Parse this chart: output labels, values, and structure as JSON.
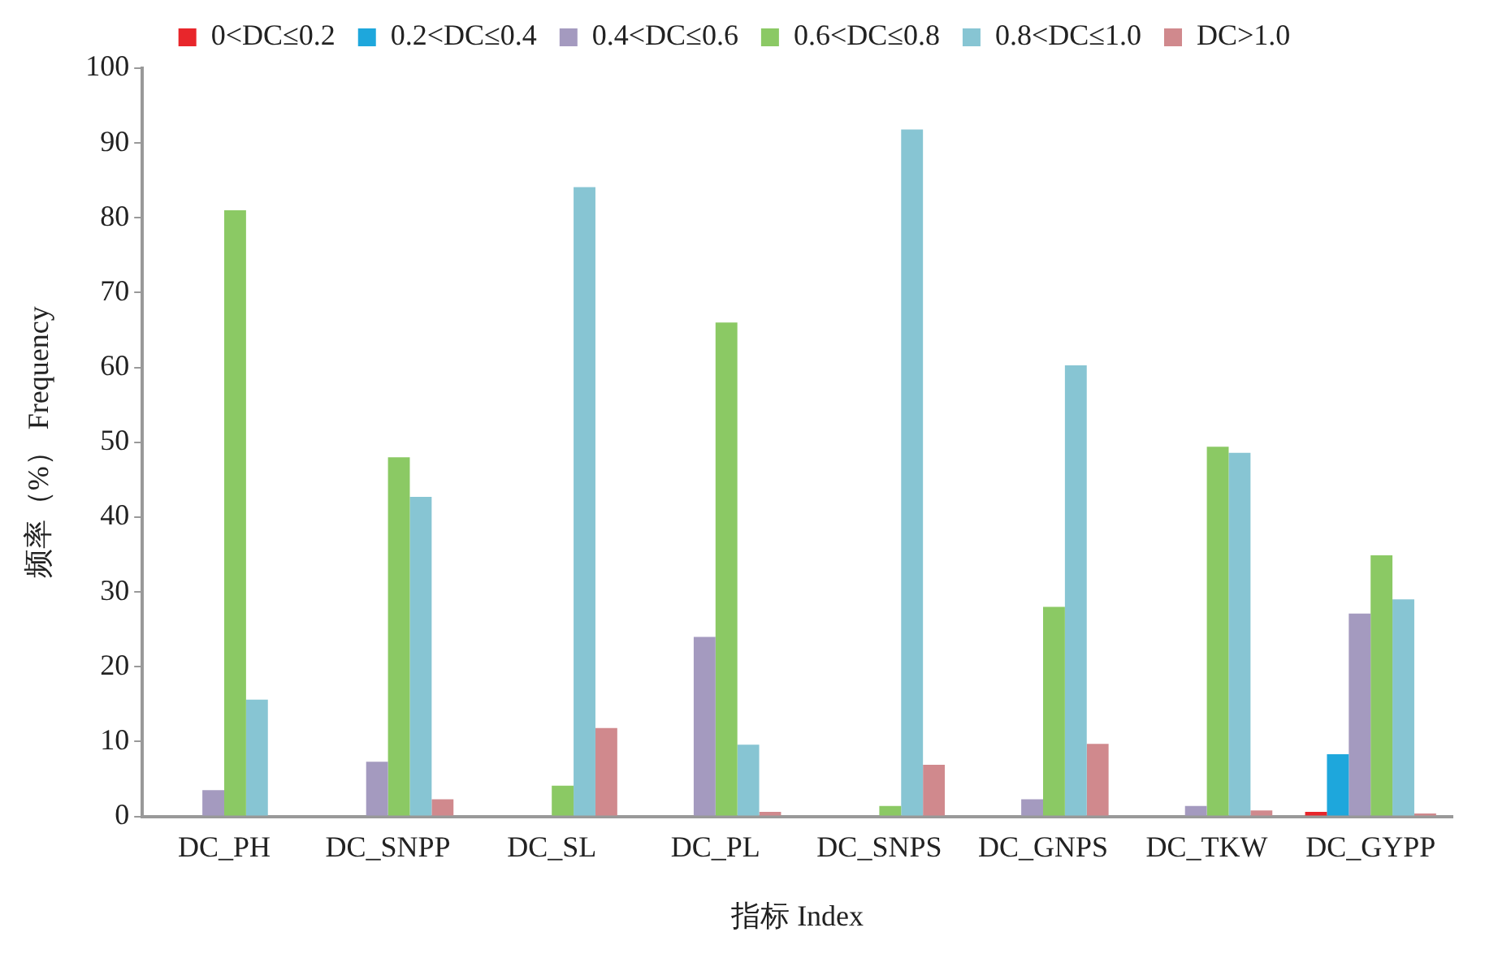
{
  "chart_data": {
    "type": "bar",
    "xlabel": "指标 Index",
    "ylabel": "频率（%） Frequency",
    "categories": [
      "DC_PH",
      "DC_SNPP",
      "DC_SL",
      "DC_PL",
      "DC_SNPS",
      "DC_GNPS",
      "DC_TKW",
      "DC_GYPP"
    ],
    "series": [
      {
        "name": "0<DC≤0.2",
        "color": "#e8262b",
        "values": [
          0,
          0,
          0,
          0,
          0,
          0,
          0,
          0.6
        ]
      },
      {
        "name": "0.2<DC≤0.4",
        "color": "#1ea7dc",
        "values": [
          0,
          0,
          0,
          0,
          0,
          0,
          0,
          8.3
        ]
      },
      {
        "name": "0.4<DC≤0.6",
        "color": "#a49abf",
        "values": [
          3.5,
          7.3,
          0,
          24,
          0,
          2.3,
          1.4,
          27.1
        ]
      },
      {
        "name": "0.6<DC≤0.8",
        "color": "#8bc964",
        "values": [
          81,
          48,
          4.1,
          66,
          1.4,
          28,
          49.4,
          34.9
        ]
      },
      {
        "name": "0.8<DC≤1.0",
        "color": "#87c5d3",
        "values": [
          15.6,
          42.7,
          84.1,
          9.6,
          91.8,
          60.3,
          48.6,
          29
        ]
      },
      {
        "name": "DC>1.0",
        "color": "#d0898d",
        "values": [
          0,
          2.3,
          11.8,
          0.6,
          6.9,
          9.7,
          0.8,
          0.4
        ]
      }
    ],
    "ylim": [
      0,
      100
    ],
    "yticks": [
      0,
      10,
      20,
      30,
      40,
      50,
      60,
      70,
      80,
      90,
      100
    ],
    "grid": false,
    "legend": "top"
  }
}
